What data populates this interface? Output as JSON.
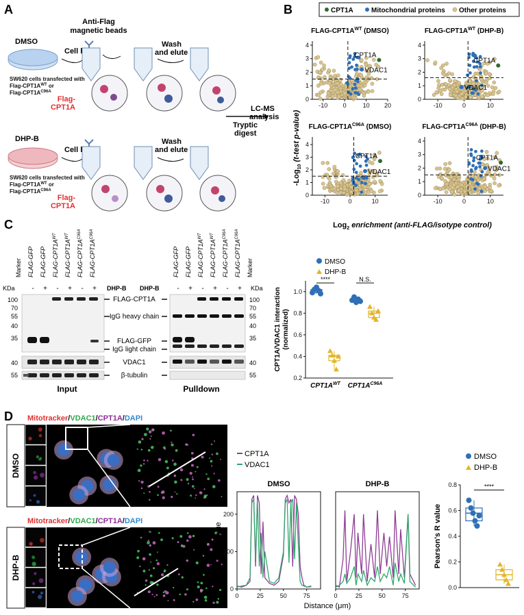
{
  "panel_a": {
    "letter": "A",
    "conditions": [
      "DMSO",
      "DHP-B"
    ],
    "beads_label": "Anti-Flag\nmagnetic beads",
    "step_lysis": "Cell lysis",
    "step_wash": "Wash\nand elute",
    "cell_caption_line1": "SW620 cells transfected with",
    "cell_caption_line2": "Flag-CPT1A",
    "cell_caption_line2_sup": "WT",
    "cell_caption_line2_tail": " or",
    "cell_caption_line3": "Flag-CPT1A",
    "cell_caption_line3_sup": "C96A",
    "flag_cpt1a": "Flag-\nCPT1A",
    "tryptic": "Tryptic\ndigest",
    "lcms": "LC-MS\nanalysis"
  },
  "panel_b": {
    "letter": "B",
    "legend": [
      "CPT1A",
      "Mitochondrial proteins",
      "Other proteins"
    ],
    "titles": [
      "FLAG-CPT1A",
      "FLAG-CPT1A",
      "FLAG-CPT1A",
      "FLAG-CPT1A"
    ],
    "title_sups": [
      "WT",
      "WT",
      "C96A",
      "C96A"
    ],
    "title_conds": [
      " (DMSO)",
      " (DHP-B)",
      " (DMSO)",
      " (DHP-B)"
    ],
    "ylabel_pre": "-Log",
    "ylabel_sub": "10",
    "ylabel_post": " (t-test p-value)",
    "xlabel_pre": "Log",
    "xlabel_sub": "2",
    "xlabel_post": " enrichment (anti-FLAG/isotype control)",
    "labels": {
      "cpt1a": "CPT1A",
      "vdac1": "VDAC1"
    },
    "colors": {
      "cpt1a": "#2e6b2e",
      "mito": "#2f6fb5",
      "other": "#d9c58f"
    }
  },
  "panel_c": {
    "letter": "C",
    "kda": "KDa",
    "marker": "Marker",
    "lanes": [
      "FLAG-GFP",
      "FLAG-GFP",
      "FLAG-CPT1A",
      "FLAG-CPT1A",
      "FLAG-CPT1A",
      "FLAG-CPT1A"
    ],
    "lane_sups": [
      "",
      "",
      "WT",
      "WT",
      "C96A",
      "C96A"
    ],
    "dhpb": "DHP-B",
    "signs": [
      "-",
      "+",
      "-",
      "+",
      "-",
      "+"
    ],
    "mw_left": [
      "100",
      "70",
      "55",
      "40",
      "35",
      "40",
      "55"
    ],
    "mw_right": [
      "100",
      "70",
      "55",
      "40",
      "35",
      "40",
      "55"
    ],
    "bands": [
      "FLAG-CPT1A",
      "IgG heavy chain",
      "FLAG-GFP",
      "IgG light chain",
      "VDAC1",
      "β-tubulin"
    ],
    "input": "Input",
    "pulldown": "Pulldown"
  },
  "chart_c": {
    "legend": [
      "DMSO",
      "DHP-B"
    ],
    "ylabel": "CPT1A/VDAC1 interaction\n(normalized)",
    "yticks": [
      "0.2",
      "0.4",
      "0.6",
      "0.8",
      "1.0"
    ],
    "groups": [
      "CPT1A",
      "CPT1A"
    ],
    "group_sups": [
      "WT",
      "C96A"
    ],
    "sig": [
      "****",
      "N.S."
    ],
    "colors": {
      "dmso": "#2f6fb5",
      "dhpb": "#e2b52a"
    }
  },
  "chart_data": [
    {
      "type": "scatter",
      "title": "CPT1A/VDAC1 interaction",
      "ylabel": "CPT1A/VDAC1 interaction (normalized)",
      "ylim": [
        0.2,
        1.1
      ],
      "categories": [
        "CPT1A WT",
        "CPT1A C96A"
      ],
      "series": [
        {
          "name": "DMSO",
          "values": [
            [
              0.99,
              1.02,
              1.04,
              1.01,
              0.98
            ],
            [
              0.92,
              0.95,
              0.9,
              0.93,
              0.91
            ]
          ]
        },
        {
          "name": "DHP-B",
          "values": [
            [
              0.45,
              0.41,
              0.36,
              0.28,
              0.4
            ],
            [
              0.86,
              0.8,
              0.76,
              0.74,
              0.82
            ]
          ]
        }
      ]
    },
    {
      "type": "line",
      "title": "DMSO",
      "xlabel": "Distance (μm)",
      "ylabel": "Gray value",
      "xlim": [
        0,
        90
      ],
      "ylim": [
        0,
        260
      ],
      "series": [
        {
          "name": "CPT1A",
          "x": [
            0,
            5,
            10,
            14,
            16,
            18,
            20,
            22,
            24,
            26,
            28,
            30,
            35,
            40,
            45,
            50,
            52,
            54,
            56,
            58,
            60,
            62,
            64,
            66,
            68,
            70,
            72,
            75,
            80
          ],
          "values": [
            8,
            5,
            10,
            20,
            240,
            250,
            60,
            250,
            230,
            40,
            180,
            30,
            15,
            10,
            20,
            90,
            240,
            250,
            230,
            240,
            60,
            250,
            240,
            200,
            60,
            30,
            10,
            5,
            8
          ]
        },
        {
          "name": "VDAC1",
          "x": [
            0,
            5,
            10,
            14,
            16,
            18,
            20,
            22,
            24,
            26,
            28,
            30,
            35,
            40,
            45,
            50,
            52,
            54,
            56,
            58,
            60,
            62,
            64,
            66,
            68,
            70,
            72,
            75,
            80
          ],
          "values": [
            5,
            8,
            10,
            30,
            230,
            240,
            80,
            240,
            60,
            150,
            30,
            100,
            20,
            15,
            30,
            100,
            230,
            240,
            70,
            230,
            240,
            80,
            230,
            120,
            20,
            10,
            8,
            5,
            6
          ]
        }
      ]
    },
    {
      "type": "line",
      "title": "DHP-B",
      "xlabel": "Distance (μm)",
      "xlim": [
        0,
        90
      ],
      "ylim": [
        0,
        260
      ],
      "series": [
        {
          "name": "CPT1A",
          "x": [
            0,
            4,
            8,
            10,
            12,
            16,
            20,
            22,
            24,
            28,
            30,
            34,
            38,
            42,
            45,
            48,
            52,
            55,
            58,
            62,
            64,
            68,
            70,
            74,
            78,
            80,
            84,
            86
          ],
          "values": [
            10,
            5,
            80,
            210,
            20,
            100,
            200,
            30,
            150,
            40,
            200,
            20,
            120,
            30,
            210,
            40,
            150,
            60,
            140,
            30,
            210,
            40,
            160,
            30,
            200,
            40,
            20,
            10
          ]
        },
        {
          "name": "VDAC1",
          "x": [
            0,
            4,
            8,
            10,
            12,
            16,
            20,
            22,
            24,
            28,
            30,
            34,
            38,
            42,
            45,
            48,
            52,
            55,
            58,
            62,
            64,
            68,
            70,
            74,
            78,
            80,
            84,
            86
          ],
          "values": [
            5,
            10,
            20,
            40,
            15,
            30,
            60,
            10,
            40,
            20,
            50,
            10,
            30,
            20,
            60,
            20,
            40,
            30,
            60,
            10,
            70,
            20,
            40,
            15,
            200,
            20,
            10,
            5
          ]
        }
      ]
    },
    {
      "type": "scatter",
      "title": "Pearson's R value",
      "ylabel": "Pearson's R value",
      "ylim": [
        0,
        0.8
      ],
      "categories": [
        "DMSO",
        "DHP-B"
      ],
      "series": [
        {
          "name": "DMSO",
          "values": [
            0.68,
            0.62,
            0.58,
            0.52,
            0.48,
            0.56
          ]
        },
        {
          "name": "DHP-B",
          "values": [
            0.18,
            0.14,
            0.1,
            0.06,
            0.03
          ]
        }
      ]
    }
  ],
  "panel_d": {
    "letter": "D",
    "stain_words": [
      "Mitotracker",
      "/",
      "VDAC1",
      "/",
      "CPT1A",
      "/",
      "DAPI"
    ],
    "stain_colors": [
      "#e0302f",
      "#111111",
      "#2fa84a",
      "#111111",
      "#8e2c9a",
      "#111111",
      "#2f8ad1"
    ],
    "rows": [
      "DMSO",
      "DHP-B"
    ],
    "legend_lines": [
      "CPT1A",
      "VDAC1"
    ],
    "line_colors": {
      "cpt1a": "#8e3c96",
      "vdac1": "#2ea86a"
    },
    "profile_titles": [
      "DMSO",
      "DHP-B"
    ],
    "gray_value": "Gray value",
    "distance": "Distance (μm)",
    "xticks": [
      "0",
      "25",
      "50",
      "75"
    ],
    "yticks": [
      "0",
      "100",
      "200"
    ],
    "pearson_legend": [
      "DMSO",
      "DHP-B"
    ],
    "pearson_yticks": [
      "0.0",
      "0.2",
      "0.4",
      "0.6",
      "0.8"
    ],
    "pearson_sig": "****",
    "pearson_ylabel": "Pearson's R value"
  }
}
